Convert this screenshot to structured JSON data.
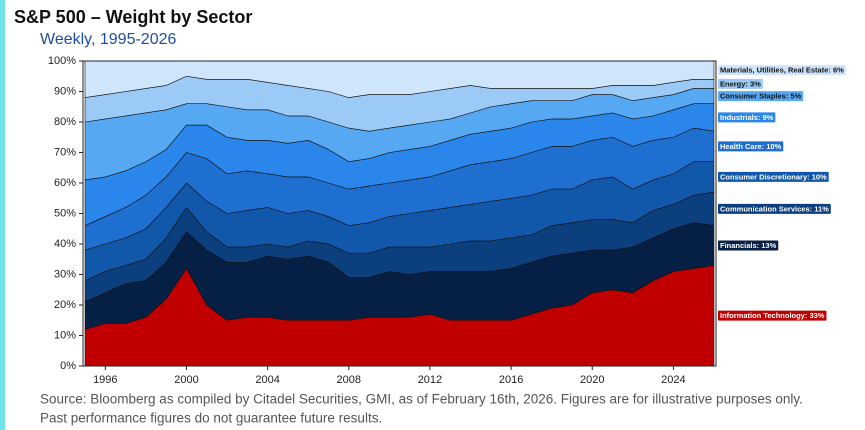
{
  "chart_data": {
    "type": "stacked-area",
    "title": "S&P 500 – Weight by Sector",
    "subtitle": "Weekly, 1995-2026",
    "source_lines": [
      "Source: Bloomberg as compiled by Citadel Securities, GMI, as of February 16th, 2026. Figures are for illustrative purposes only.",
      "Past performance figures do not guarantee future results."
    ],
    "x": [
      1995,
      1996,
      1997,
      1998,
      1999,
      2000,
      2001,
      2002,
      2003,
      2004,
      2005,
      2006,
      2007,
      2008,
      2009,
      2010,
      2011,
      2012,
      2013,
      2014,
      2015,
      2016,
      2017,
      2018,
      2019,
      2020,
      2021,
      2022,
      2023,
      2024,
      2025,
      2026
    ],
    "xlim": [
      1994.9,
      2026.1
    ],
    "xticks": [
      1996,
      2000,
      2004,
      2008,
      2012,
      2016,
      2020,
      2024
    ],
    "ylim": [
      0,
      100
    ],
    "yticks": [
      {
        "value": 0,
        "label": "0%"
      },
      {
        "value": 10,
        "label": "10%"
      },
      {
        "value": 20,
        "label": "20%"
      },
      {
        "value": 30,
        "label": "30%"
      },
      {
        "value": 40,
        "label": "40%"
      },
      {
        "value": 50,
        "label": "50%"
      },
      {
        "value": 60,
        "label": "60%"
      },
      {
        "value": 70,
        "label": "70%"
      },
      {
        "value": 80,
        "label": "80%"
      },
      {
        "value": 90,
        "label": "90%"
      },
      {
        "value": 100,
        "label": "100%"
      }
    ],
    "series": [
      {
        "name": "Information Technology: 33%",
        "color": "#c00000",
        "values": [
          12,
          14,
          14,
          16,
          22,
          32,
          20,
          15,
          16,
          16,
          15,
          15,
          15,
          15,
          16,
          16,
          16,
          17,
          15,
          15,
          15,
          15,
          17,
          19,
          20,
          24,
          25,
          24,
          28,
          31,
          32,
          33
        ]
      },
      {
        "name": "Financials: 13%",
        "color": "#061f45",
        "values": [
          9,
          10,
          13,
          12,
          12,
          12,
          18,
          19,
          18,
          20,
          20,
          21,
          19,
          14,
          13,
          15,
          14,
          14,
          16,
          16,
          16,
          17,
          17,
          17,
          17,
          14,
          13,
          15,
          14,
          14,
          15,
          13
        ]
      },
      {
        "name": "Communication Services: 11%",
        "color": "#0c3f7e",
        "values": [
          7,
          7,
          6,
          7,
          8,
          8,
          6,
          5,
          5,
          4,
          4,
          5,
          6,
          8,
          8,
          8,
          9,
          8,
          9,
          10,
          10,
          10,
          9,
          10,
          10,
          10,
          10,
          8,
          9,
          8,
          9,
          11
        ]
      },
      {
        "name": "Consumer Discretionary: 10%",
        "color": "#1258aa",
        "values": [
          10,
          9,
          9,
          10,
          10,
          8,
          10,
          11,
          12,
          12,
          11,
          10,
          9,
          9,
          10,
          10,
          11,
          12,
          12,
          12,
          13,
          13,
          13,
          12,
          11,
          13,
          14,
          11,
          10,
          10,
          11,
          10
        ]
      },
      {
        "name": "Health Care: 10%",
        "color": "#1e6fd0",
        "values": [
          8,
          9,
          10,
          11,
          10,
          10,
          14,
          13,
          13,
          11,
          12,
          11,
          11,
          12,
          12,
          11,
          11,
          11,
          12,
          13,
          13,
          13,
          14,
          14,
          14,
          13,
          13,
          14,
          13,
          12,
          11,
          10
        ]
      },
      {
        "name": "Industrials: 9%",
        "color": "#2a86ea",
        "values": [
          15,
          13,
          12,
          11,
          9,
          9,
          11,
          12,
          10,
          11,
          11,
          12,
          11,
          9,
          9,
          10,
          10,
          10,
          10,
          10,
          10,
          10,
          10,
          9,
          9,
          8,
          8,
          9,
          8,
          9,
          8,
          9
        ]
      },
      {
        "name": "Consumer Staples: 5%",
        "color": "#56a8f3",
        "values": [
          19,
          19,
          18,
          16,
          13,
          7,
          7,
          10,
          10,
          10,
          9,
          8,
          9,
          11,
          9,
          8,
          8,
          8,
          7,
          7,
          8,
          8,
          7,
          6,
          6,
          7,
          6,
          6,
          6,
          5,
          5,
          5
        ]
      },
      {
        "name": "Energy: 3%",
        "color": "#9ccaf7",
        "values": [
          8,
          8,
          8,
          8,
          8,
          9,
          8,
          9,
          10,
          9,
          10,
          9,
          10,
          10,
          12,
          11,
          10,
          10,
          10,
          9,
          6,
          5,
          4,
          4,
          4,
          2,
          3,
          5,
          4,
          4,
          3,
          3
        ]
      },
      {
        "name": "Materials, Utilities, Real Estate: 6%",
        "color": "#cfe5fb",
        "values": [
          12,
          11,
          10,
          9,
          8,
          5,
          6,
          6,
          6,
          7,
          8,
          9,
          10,
          12,
          11,
          11,
          11,
          10,
          9,
          8,
          9,
          9,
          9,
          9,
          9,
          9,
          8,
          8,
          8,
          7,
          6,
          6
        ]
      }
    ]
  }
}
